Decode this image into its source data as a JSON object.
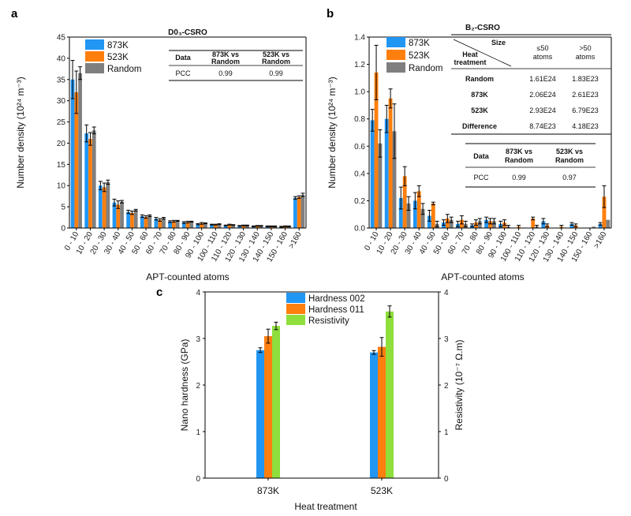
{
  "colors": {
    "series1": "#2196f3",
    "series2": "#ff7f0e",
    "series3": "#7f7f7f",
    "series3_c": "#8ede3c",
    "axis": "#000000"
  },
  "panels": {
    "a": "a",
    "b": "b",
    "c": "c"
  },
  "chart_data": [
    {
      "type": "bar",
      "title": "D0₃-CSRO",
      "xlabel": "APT-counted atoms",
      "ylabel": "Number density (10²⁴ m⁻³)",
      "ylim": [
        0,
        45
      ],
      "yticks": [
        "0",
        "5",
        "10",
        "15",
        "20",
        "25",
        "30",
        "35",
        "40",
        "45"
      ],
      "categories": [
        "0 - 10",
        "10 - 20",
        "20 - 30",
        "30 - 40",
        "40 - 50",
        "50 - 60",
        "60 - 70",
        "70 - 80",
        "80 - 90",
        "90 - 100",
        "100 - 110",
        "110 - 120",
        "120 - 130",
        "130 - 140",
        "140 - 150",
        "150 - 160",
        ">160"
      ],
      "series": [
        {
          "name": "873K",
          "values": [
            35.0,
            22.3,
            10.0,
            6.0,
            3.8,
            2.8,
            2.2,
            1.5,
            1.3,
            0.9,
            0.8,
            0.6,
            0.5,
            0.4,
            0.4,
            0.3,
            7.1
          ],
          "errors": [
            4.5,
            2.0,
            1.0,
            0.8,
            0.4,
            0.3,
            0.3,
            0.2,
            0.2,
            0.15,
            0.1,
            0.1,
            0.1,
            0.1,
            0.1,
            0.1,
            0.3
          ]
        },
        {
          "name": "523K",
          "values": [
            32.0,
            21.0,
            9.6,
            5.5,
            3.6,
            2.6,
            1.9,
            1.6,
            1.4,
            1.1,
            0.8,
            0.8,
            0.6,
            0.5,
            0.4,
            0.4,
            7.3
          ],
          "errors": [
            5.0,
            1.5,
            1.0,
            0.9,
            0.4,
            0.3,
            0.3,
            0.2,
            0.2,
            0.2,
            0.1,
            0.1,
            0.1,
            0.1,
            0.1,
            0.1,
            0.3
          ]
        },
        {
          "name": "Random",
          "values": [
            36.5,
            23.0,
            10.8,
            6.2,
            4.2,
            2.9,
            2.3,
            1.7,
            1.5,
            1.1,
            0.9,
            0.7,
            0.6,
            0.5,
            0.4,
            0.4,
            7.8
          ],
          "errors": [
            1.5,
            0.8,
            0.5,
            0.3,
            0.2,
            0.2,
            0.2,
            0.1,
            0.1,
            0.1,
            0.1,
            0.1,
            0.1,
            0.1,
            0.1,
            0.1,
            0.4
          ]
        }
      ],
      "legend": "top-left",
      "table": {
        "headers": [
          "Data",
          "873K vs Random",
          "523K vs Random"
        ],
        "rows": [
          [
            "PCC",
            "0.99",
            "0.99"
          ]
        ]
      }
    },
    {
      "type": "bar",
      "title": "B₂-CSRO",
      "xlabel": "APT-counted atoms",
      "ylabel": "Number density (10²⁴ m⁻³)",
      "ylim": [
        0,
        1.4
      ],
      "yticks": [
        "0.0",
        "0.2",
        "0.4",
        "0.6",
        "0.8",
        "1.0",
        "1.2",
        "1.4"
      ],
      "categories": [
        "0 - 10",
        "10 - 20",
        "20 - 30",
        "30 - 40",
        "40 - 50",
        "50 - 60",
        "60 - 70",
        "70 - 80",
        "80 - 90",
        "90 - 100",
        "100 - 110",
        "110 - 120",
        "120 - 130",
        "130 - 140",
        "140 - 150",
        "150 - 160",
        ">160"
      ],
      "series": [
        {
          "name": "873K",
          "values": [
            0.79,
            0.8,
            0.22,
            0.2,
            0.09,
            0.04,
            0.03,
            0.02,
            0.06,
            0.03,
            0.0,
            0.0,
            0.05,
            0.0,
            0.03,
            0.0,
            0.03
          ],
          "errors": [
            0.08,
            0.1,
            0.08,
            0.06,
            0.04,
            0.02,
            0.02,
            0.01,
            0.02,
            0.02,
            0.0,
            0.0,
            0.02,
            0.0,
            0.01,
            0.0,
            0.01
          ]
        },
        {
          "name": "523K",
          "values": [
            1.14,
            0.95,
            0.38,
            0.27,
            0.18,
            0.07,
            0.06,
            0.04,
            0.05,
            0.04,
            0.01,
            0.07,
            0.02,
            0.01,
            0.02,
            0.0,
            0.23
          ],
          "errors": [
            0.2,
            0.07,
            0.07,
            0.04,
            0.01,
            0.03,
            0.03,
            0.02,
            0.02,
            0.02,
            0.01,
            0.01,
            0.01,
            0.01,
            0.01,
            0.0,
            0.08
          ]
        },
        {
          "name": "Random",
          "values": [
            0.62,
            0.71,
            0.18,
            0.14,
            0.03,
            0.06,
            0.03,
            0.05,
            0.05,
            0.01,
            0.0,
            0.01,
            0.0,
            0.0,
            0.0,
            0.01,
            0.06
          ],
          "errors": [
            0.1,
            0.2,
            0.05,
            0.04,
            0.02,
            0.02,
            0.02,
            0.02,
            0.02,
            0.01,
            0.0,
            0.01,
            0.0,
            0.0,
            0.0,
            0.0,
            0.0
          ]
        }
      ],
      "legend": "top-left",
      "size_table": {
        "corner_top": "Size",
        "corner_bottom": "Heat treatment",
        "headers": [
          "≤50 atoms",
          ">50 atoms"
        ],
        "rows": [
          [
            "Random",
            "1.61E24",
            "1.83E23"
          ],
          [
            "873K",
            "2.06E24",
            "2.61E23"
          ],
          [
            "523K",
            "2.93E24",
            "6.79E23"
          ],
          [
            "Difference",
            "8.74E23",
            "4.18E23"
          ]
        ]
      },
      "table": {
        "headers": [
          "Data",
          "873K vs Random",
          "523K vs Random"
        ],
        "rows": [
          [
            "PCC",
            "0.99",
            "0.97"
          ]
        ]
      }
    },
    {
      "type": "bar",
      "xlabel": "Heat treatment",
      "ylabel": "Nano hardness (GPa)",
      "y2label": "Resistivity (10⁻⁷ Ω.m)",
      "ylim": [
        0,
        4
      ],
      "y2lim": [
        0,
        4
      ],
      "yticks": [
        "0",
        "1",
        "2",
        "3",
        "4"
      ],
      "categories": [
        "873K",
        "523K"
      ],
      "series": [
        {
          "name": "Hardness 002",
          "values": [
            2.75,
            2.7
          ],
          "errors": [
            0.05,
            0.04
          ],
          "axis": "left"
        },
        {
          "name": "Hardness 011",
          "values": [
            3.05,
            2.82
          ],
          "errors": [
            0.15,
            0.2
          ],
          "axis": "left"
        },
        {
          "name": "Resistivity",
          "values": [
            3.27,
            3.58
          ],
          "errors": [
            0.08,
            0.12
          ],
          "axis": "right"
        }
      ],
      "legend": "top-center"
    }
  ]
}
